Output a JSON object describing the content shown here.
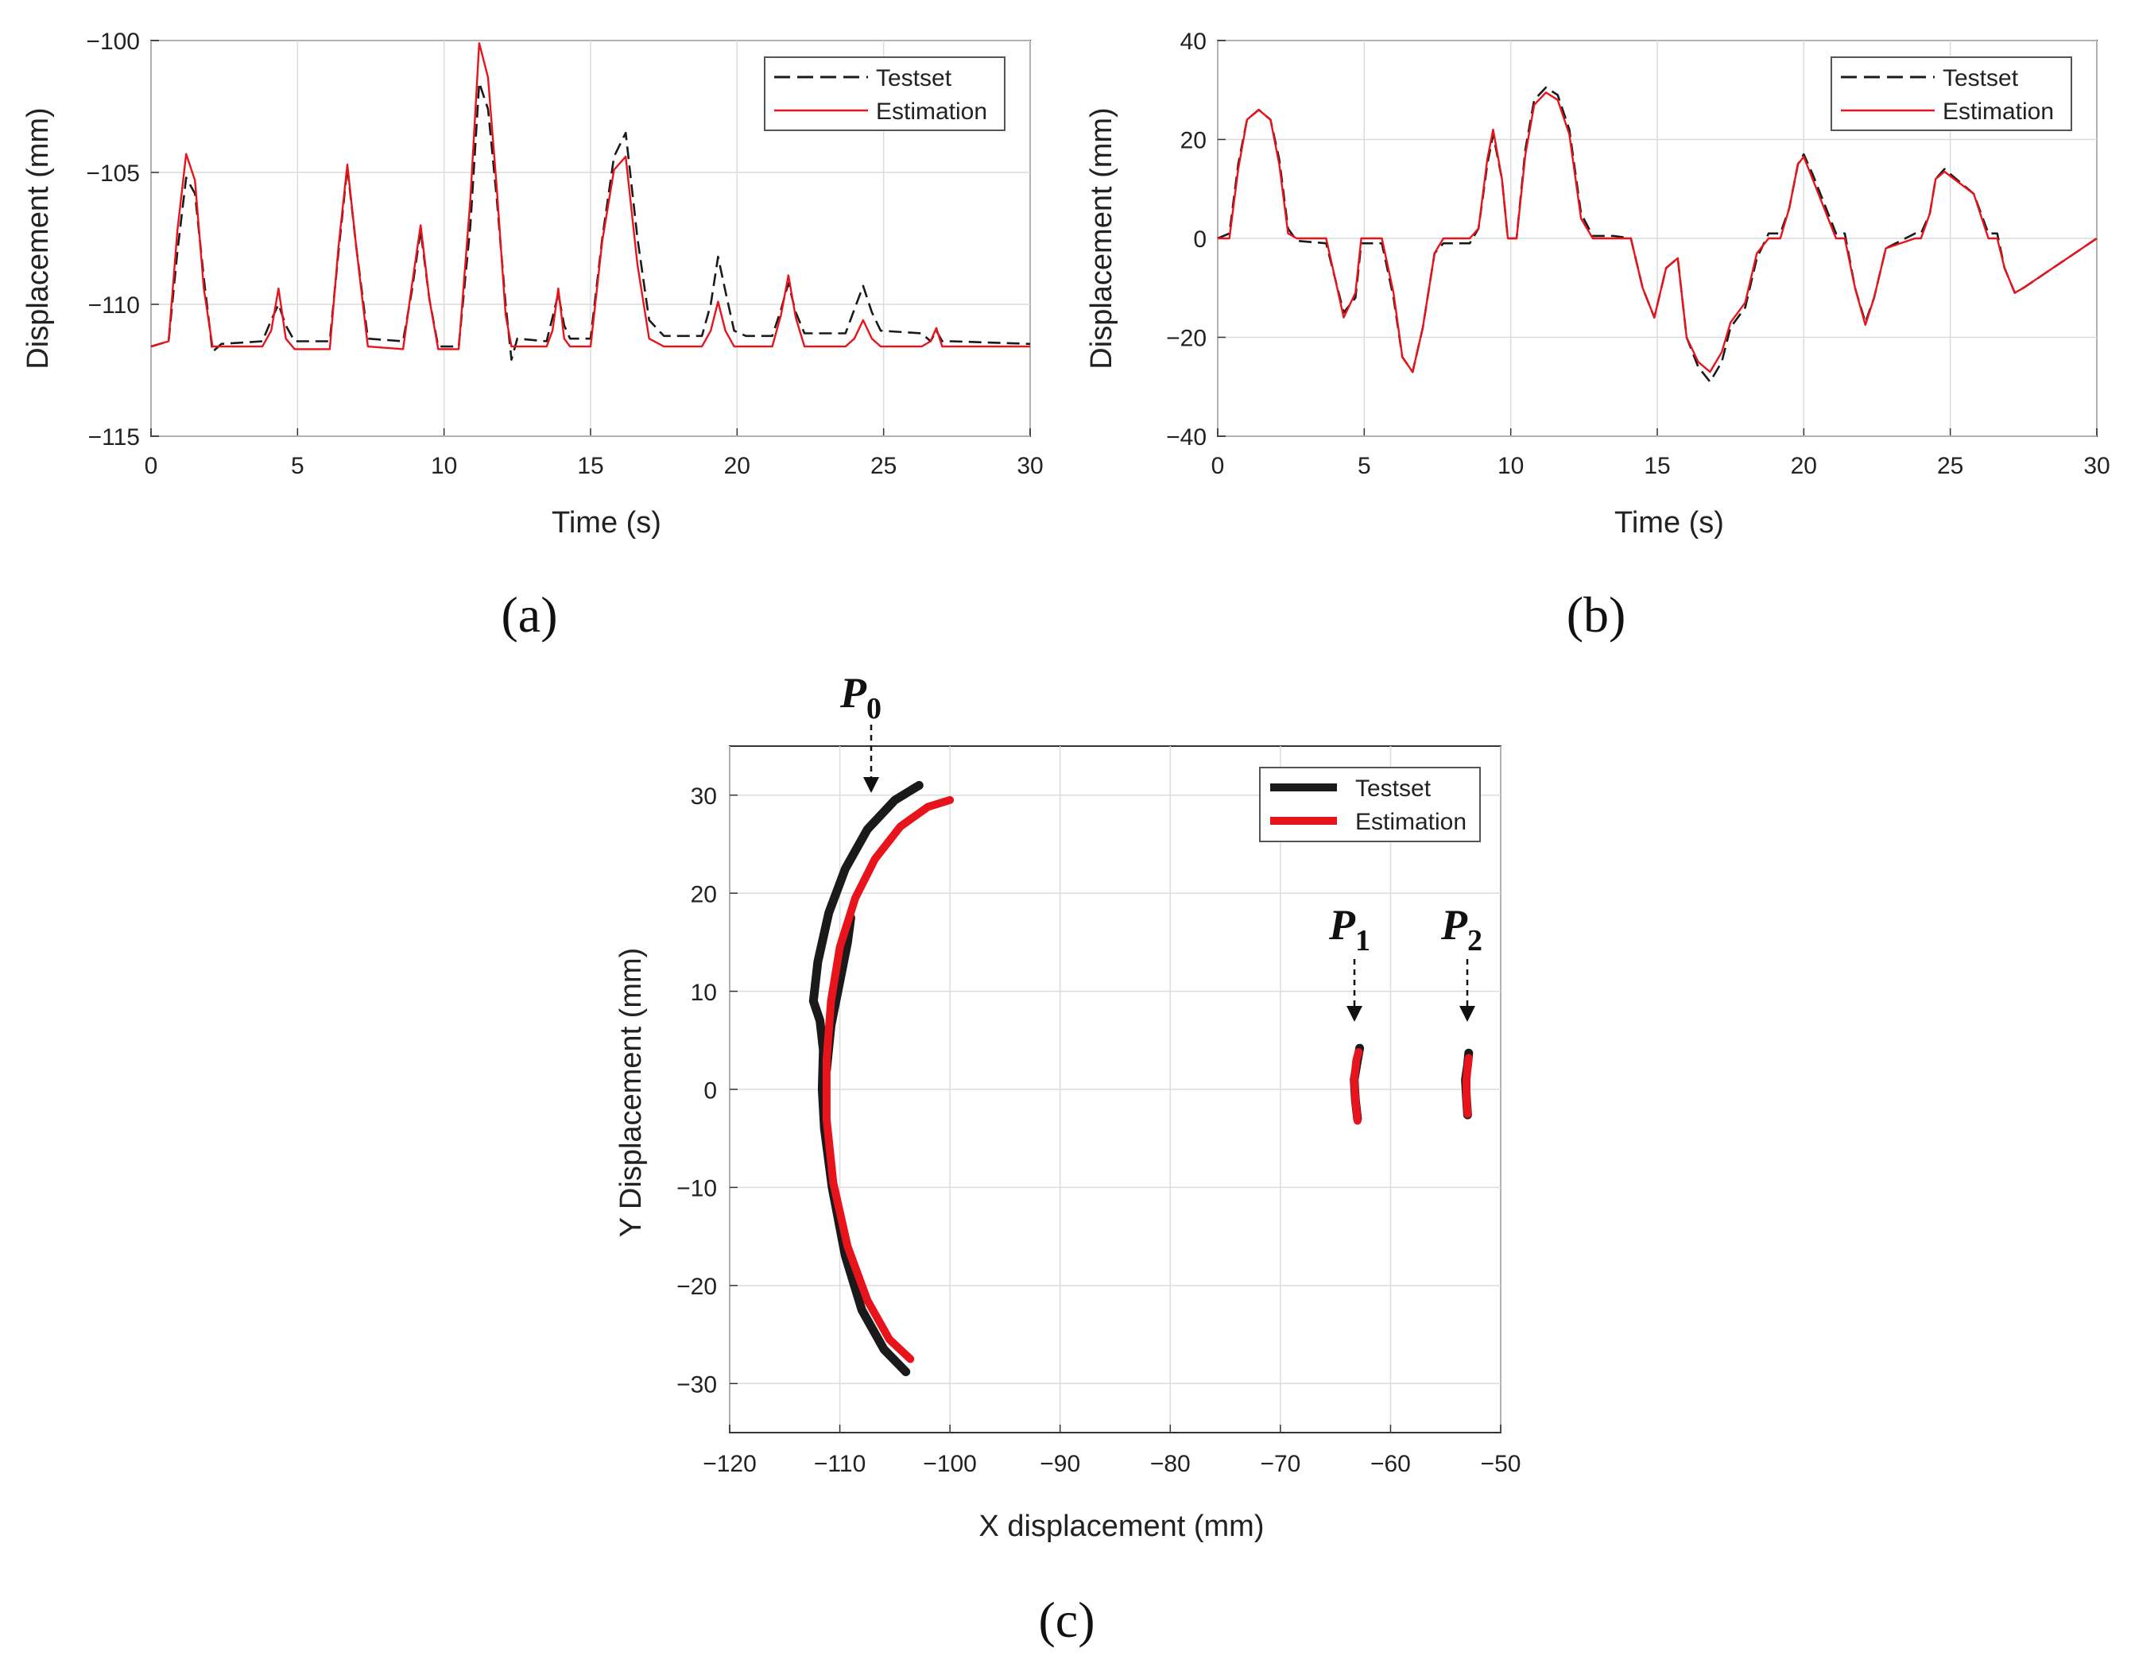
{
  "colors": {
    "testset": "#1a1a1a",
    "estimation": "#e8141b",
    "grid": "#dcdcdc",
    "axis": "#333333"
  },
  "panels": [
    {
      "label": "(a)",
      "ylabel": "Displacement  (mm)",
      "xlabel": "Time (s)",
      "legend": [
        "Testset",
        "Estimation"
      ],
      "xticks": [
        "0",
        "5",
        "10",
        "15",
        "20",
        "25",
        "30"
      ],
      "yticks": [
        "−100",
        "−105",
        "−110",
        "−115"
      ]
    },
    {
      "label": "(b)",
      "ylabel": "Displacement  (mm)",
      "xlabel": "Time (s)",
      "legend": [
        "Testset",
        "Estimation"
      ],
      "xticks": [
        "0",
        "5",
        "10",
        "15",
        "20",
        "25",
        "30"
      ],
      "yticks": [
        "40",
        "20",
        "0",
        "−20",
        "−40"
      ]
    },
    {
      "label": "(c)",
      "ylabel": "Y Displacement  (mm)",
      "xlabel": "X displacement  (mm)",
      "legend": [
        "Testset",
        "Estimation"
      ],
      "xticks": [
        "−120",
        "−110",
        "−100",
        "−90",
        "−80",
        "−70",
        "−60",
        "−50"
      ],
      "yticks": [
        "30",
        "20",
        "10",
        "0",
        "−10",
        "−20",
        "−30"
      ],
      "points": [
        {
          "main": "P",
          "sub": "0"
        },
        {
          "main": "P",
          "sub": "1"
        },
        {
          "main": "P",
          "sub": "2"
        }
      ]
    }
  ],
  "chart_data": [
    {
      "type": "line",
      "panel": "(a)",
      "xlabel": "Time (s)",
      "ylabel": "Displacement (mm)",
      "xlim": [
        0,
        30
      ],
      "ylim": [
        -115,
        -100
      ],
      "grid": true,
      "legend_position": "top-right",
      "series": [
        {
          "name": "Testset",
          "style": "dashed",
          "x": [
            0,
            0.6,
            0.9,
            1.2,
            1.5,
            1.8,
            2.1,
            2.4,
            3.8,
            4.1,
            4.35,
            4.6,
            4.9,
            5.2,
            6.1,
            6.4,
            6.7,
            7.0,
            7.4,
            8.6,
            8.9,
            9.2,
            9.5,
            9.8,
            10.5,
            10.9,
            11.2,
            11.5,
            11.8,
            12.1,
            12.3,
            12.5,
            13.5,
            13.7,
            13.9,
            14.1,
            14.3,
            15.0,
            15.4,
            15.8,
            16.2,
            16.6,
            17.0,
            17.5,
            18.8,
            19.1,
            19.35,
            19.6,
            19.9,
            20.3,
            21.2,
            21.5,
            21.75,
            22.0,
            22.3,
            23.7,
            24.0,
            24.3,
            24.6,
            24.9,
            26.3,
            26.6,
            26.8,
            27.0,
            27.3,
            30
          ],
          "y": [
            -111.6,
            -111.4,
            -108.0,
            -105.2,
            -105.8,
            -109.0,
            -111.8,
            -111.5,
            -111.4,
            -110.6,
            -110.0,
            -110.8,
            -111.4,
            -111.4,
            -111.4,
            -108.0,
            -104.8,
            -107.8,
            -111.3,
            -111.4,
            -109.5,
            -107.2,
            -109.8,
            -111.6,
            -111.6,
            -107.0,
            -101.6,
            -102.6,
            -106.0,
            -110.0,
            -112.1,
            -111.3,
            -111.4,
            -110.5,
            -109.6,
            -110.8,
            -111.3,
            -111.3,
            -107.5,
            -104.4,
            -103.5,
            -107.5,
            -110.6,
            -111.2,
            -111.2,
            -110.0,
            -108.2,
            -109.5,
            -111.0,
            -111.2,
            -111.2,
            -110.2,
            -109.2,
            -110.3,
            -111.1,
            -111.1,
            -110.2,
            -109.3,
            -110.3,
            -111.0,
            -111.1,
            -111.4,
            -111.0,
            -111.4,
            -111.4,
            -111.5
          ]
        },
        {
          "name": "Estimation",
          "style": "solid",
          "x": [
            0,
            0.6,
            0.9,
            1.2,
            1.5,
            1.8,
            2.1,
            2.4,
            3.8,
            4.1,
            4.35,
            4.6,
            4.9,
            5.2,
            6.1,
            6.4,
            6.7,
            7.0,
            7.4,
            8.6,
            8.9,
            9.2,
            9.5,
            9.8,
            10.5,
            10.9,
            11.2,
            11.5,
            11.8,
            12.1,
            12.3,
            12.5,
            13.5,
            13.7,
            13.9,
            14.1,
            14.3,
            15.0,
            15.4,
            15.8,
            16.2,
            16.6,
            17.0,
            17.5,
            18.8,
            19.1,
            19.35,
            19.6,
            19.9,
            20.3,
            21.2,
            21.5,
            21.75,
            22.0,
            22.3,
            23.7,
            24.0,
            24.3,
            24.6,
            24.9,
            26.3,
            26.6,
            26.8,
            27.0,
            27.3,
            30
          ],
          "y": [
            -111.6,
            -111.4,
            -107.2,
            -104.3,
            -105.3,
            -109.4,
            -111.6,
            -111.6,
            -111.6,
            -111.0,
            -109.4,
            -111.3,
            -111.7,
            -111.7,
            -111.7,
            -107.8,
            -104.7,
            -107.8,
            -111.6,
            -111.7,
            -109.3,
            -107.0,
            -109.8,
            -111.7,
            -111.7,
            -106.0,
            -100.1,
            -101.4,
            -105.6,
            -110.4,
            -111.6,
            -111.6,
            -111.6,
            -111.0,
            -109.4,
            -111.3,
            -111.6,
            -111.6,
            -107.6,
            -104.9,
            -104.4,
            -108.5,
            -111.3,
            -111.6,
            -111.6,
            -111.0,
            -109.9,
            -111.0,
            -111.6,
            -111.6,
            -111.6,
            -110.4,
            -108.9,
            -110.5,
            -111.6,
            -111.6,
            -111.3,
            -110.6,
            -111.3,
            -111.6,
            -111.6,
            -111.4,
            -110.9,
            -111.6,
            -111.6,
            -111.6
          ]
        }
      ]
    },
    {
      "type": "line",
      "panel": "(b)",
      "xlabel": "Time (s)",
      "ylabel": "Displacement (mm)",
      "xlim": [
        0,
        30
      ],
      "ylim": [
        -40,
        40
      ],
      "grid": true,
      "legend_position": "top-right",
      "series": [
        {
          "name": "Testset",
          "style": "dashed",
          "x": [
            0,
            0.4,
            0.7,
            1.0,
            1.4,
            1.8,
            2.1,
            2.4,
            2.7,
            3.7,
            4.0,
            4.3,
            4.7,
            4.9,
            5.6,
            6.0,
            6.3,
            6.65,
            7.0,
            7.4,
            7.7,
            8.6,
            8.9,
            9.2,
            9.4,
            9.7,
            9.9,
            10.2,
            10.5,
            10.8,
            11.2,
            11.6,
            12.0,
            12.4,
            12.8,
            13.2,
            13.5,
            14.1,
            14.5,
            14.9,
            15.3,
            15.7,
            16.0,
            16.4,
            16.8,
            17.2,
            17.5,
            18.0,
            18.4,
            18.8,
            19.2,
            19.5,
            19.8,
            20.0,
            20.3,
            21.1,
            21.4,
            21.75,
            22.1,
            22.4,
            22.8,
            23.8,
            24.0,
            24.3,
            24.5,
            24.8,
            25.8,
            26.3,
            26.6,
            26.85,
            27.2,
            27.5,
            30
          ],
          "y": [
            0,
            1,
            15,
            24,
            26,
            24,
            16,
            2,
            -0.5,
            -1,
            -8,
            -15,
            -12,
            -1,
            -1,
            -12,
            -24,
            -27,
            -18,
            -3,
            -1,
            -1,
            2,
            15,
            21,
            12,
            0,
            0,
            18,
            28,
            30.5,
            29,
            22,
            5,
            0.5,
            0.5,
            0.5,
            0,
            -10,
            -16,
            -6,
            -4,
            -20,
            -26,
            -29,
            -25,
            -18,
            -14,
            -4,
            1,
            1,
            6,
            15,
            17,
            13,
            1,
            1,
            -10,
            -17,
            -12,
            -2,
            1,
            1,
            5,
            12,
            14,
            9,
            1,
            1,
            -6,
            -11,
            -10,
            0
          ]
        },
        {
          "name": "Estimation",
          "style": "solid",
          "x": [
            0,
            0.4,
            0.7,
            1.0,
            1.4,
            1.8,
            2.1,
            2.4,
            2.7,
            3.7,
            4.0,
            4.3,
            4.7,
            4.9,
            5.6,
            6.0,
            6.3,
            6.65,
            7.0,
            7.4,
            7.7,
            8.6,
            8.9,
            9.2,
            9.4,
            9.7,
            9.9,
            10.2,
            10.5,
            10.8,
            11.2,
            11.6,
            12.0,
            12.4,
            12.8,
            13.2,
            13.5,
            14.1,
            14.5,
            14.9,
            15.3,
            15.7,
            16.0,
            16.4,
            16.8,
            17.2,
            17.5,
            18.0,
            18.4,
            18.8,
            19.2,
            19.5,
            19.8,
            20.0,
            20.3,
            21.1,
            21.4,
            21.75,
            22.1,
            22.4,
            22.8,
            23.8,
            24.0,
            24.3,
            24.5,
            24.8,
            25.8,
            26.3,
            26.6,
            26.85,
            27.2,
            27.5,
            30
          ],
          "y": [
            0,
            0,
            14,
            24,
            26,
            24,
            15,
            1,
            0,
            0,
            -8,
            -16,
            -11,
            0,
            0,
            -11,
            -24,
            -27,
            -18,
            -3,
            0,
            0,
            2,
            16,
            22,
            12,
            0,
            0,
            17,
            27,
            29.5,
            28,
            21,
            4,
            0,
            0,
            0,
            0,
            -10,
            -16,
            -6,
            -4,
            -20,
            -25,
            -27,
            -23,
            -17,
            -13,
            -3,
            0,
            0,
            6,
            15,
            16.5,
            12,
            0,
            0,
            -10,
            -17.5,
            -12,
            -2,
            0,
            0,
            5,
            12,
            13.5,
            9,
            0,
            0,
            -6,
            -11,
            -10,
            0
          ]
        }
      ]
    },
    {
      "type": "scatter",
      "panel": "(c)",
      "xlabel": "X displacement (mm)",
      "ylabel": "Y Displacement (mm)",
      "xlim": [
        -120,
        -50
      ],
      "ylim": [
        -35,
        35
      ],
      "grid": true,
      "legend_position": "top-right",
      "series": [
        {
          "name": "Testset",
          "style": "thick",
          "paths": [
            {
              "x": [
                -104.0,
                -106.0,
                -108.0,
                -109.5,
                -110.7,
                -111.4,
                -111.6,
                -111.5,
                -111.8,
                -112.4,
                -112.0,
                -111.0,
                -109.5,
                -107.5,
                -105.0,
                -102.8
              ],
              "y": [
                -28.8,
                -26.5,
                -22.5,
                -17.0,
                -10.0,
                -4.0,
                0.0,
                4.0,
                7.0,
                9.0,
                13.0,
                18.0,
                22.5,
                26.5,
                29.5,
                31.0
              ]
            },
            {
              "x": [
                -111.2,
                -110.8,
                -110.0,
                -109.3,
                -109.0
              ],
              "y": [
                2.0,
                6.5,
                11.0,
                15.0,
                17.5
              ]
            },
            {
              "x": [
                -63.0,
                -63.2,
                -63.3,
                -63.0,
                -62.8
              ],
              "y": [
                -3.0,
                -1.0,
                1.0,
                3.0,
                4.2
              ]
            },
            {
              "x": [
                -53.0,
                -53.1,
                -53.2,
                -53.0,
                -52.9
              ],
              "y": [
                -2.6,
                -1.0,
                1.0,
                2.5,
                3.7
              ]
            }
          ]
        },
        {
          "name": "Estimation",
          "style": "thick",
          "paths": [
            {
              "x": [
                -103.6,
                -105.5,
                -107.5,
                -109.3,
                -110.6,
                -111.2,
                -111.2,
                -110.8,
                -110.0,
                -108.6,
                -106.8,
                -104.5,
                -102.0,
                -100.0
              ],
              "y": [
                -27.5,
                -25.5,
                -21.5,
                -16.0,
                -9.5,
                -3.0,
                3.0,
                9.0,
                14.5,
                19.5,
                23.5,
                26.8,
                28.8,
                29.5
              ]
            },
            {
              "x": [
                -63.0,
                -63.2,
                -63.3,
                -63.1,
                -62.9
              ],
              "y": [
                -3.2,
                -1.0,
                1.0,
                3.0,
                3.8
              ]
            },
            {
              "x": [
                -53.0,
                -53.1,
                -53.1,
                -53.0,
                -52.9
              ],
              "y": [
                -2.5,
                -1.0,
                1.0,
                2.3,
                3.2
              ]
            }
          ]
        }
      ],
      "annotations": [
        {
          "label": "P0",
          "x": -107.5,
          "y": 30
        },
        {
          "label": "P1",
          "x": -63.0,
          "y": 7
        },
        {
          "label": "P2",
          "x": -53.0,
          "y": 7
        }
      ]
    }
  ]
}
